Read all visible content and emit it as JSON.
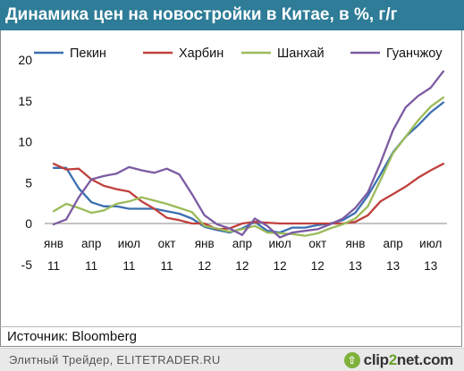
{
  "header": {
    "title": "Динамика цен на новостройки в Китае, в %, г/г"
  },
  "source": {
    "text": "Источник: Bloomberg"
  },
  "footer": {
    "text": "Элитный Трейдер, ELITETRADER.RU",
    "logo_part1": "clip",
    "logo_part2": "2",
    "logo_part3": "net.com",
    "logo_icon": "arrow-up-icon"
  },
  "chart_data": {
    "type": "line",
    "title": "Динамика цен на новостройки в Китае, в %, г/г",
    "xlabel": "",
    "ylabel": "",
    "ylim": [
      -5,
      20
    ],
    "yticks": [
      "20",
      "15",
      "10",
      "5",
      "0",
      "-5"
    ],
    "ytick_values": [
      20,
      15,
      10,
      5,
      0,
      -5
    ],
    "xticks": [
      {
        "month": "янв",
        "year": "11",
        "index": 0
      },
      {
        "month": "апр",
        "year": "11",
        "index": 3
      },
      {
        "month": "июл",
        "year": "11",
        "index": 6
      },
      {
        "month": "окт",
        "year": "11",
        "index": 9
      },
      {
        "month": "янв",
        "year": "12",
        "index": 12
      },
      {
        "month": "апр",
        "year": "12",
        "index": 15
      },
      {
        "month": "июл",
        "year": "12",
        "index": 18
      },
      {
        "month": "окт",
        "year": "12",
        "index": 21
      },
      {
        "month": "янв",
        "year": "13",
        "index": 24
      },
      {
        "month": "апр",
        "year": "13",
        "index": 27
      },
      {
        "month": "июл",
        "year": "13",
        "index": 30
      }
    ],
    "months": [
      "янв 11",
      "фев 11",
      "мар 11",
      "апр 11",
      "май 11",
      "июн 11",
      "июл 11",
      "авг 11",
      "сен 11",
      "окт 11",
      "ноя 11",
      "дек 11",
      "янв 12",
      "фев 12",
      "мар 12",
      "апр 12",
      "май 12",
      "июн 12",
      "июл 12",
      "авг 12",
      "сен 12",
      "окт 12",
      "ноя 12",
      "дек 12",
      "янв 13",
      "фев 13",
      "мар 13",
      "апр 13",
      "май 13",
      "июн 13",
      "июл 13",
      "авг 13"
    ],
    "legend_position": "top",
    "grid": false,
    "series": [
      {
        "name": "Пекин",
        "color": "#3a6fb0",
        "values": [
          6.8,
          6.8,
          4.3,
          2.6,
          2.1,
          2.1,
          1.8,
          1.8,
          1.8,
          1.5,
          1.2,
          0.6,
          -0.4,
          -0.8,
          -1.1,
          -0.6,
          0.2,
          -0.9,
          -1.1,
          -0.5,
          -0.5,
          -0.2,
          0.0,
          0.4,
          1.3,
          3.4,
          6.0,
          8.7,
          10.6,
          12.0,
          13.6,
          14.8
        ]
      },
      {
        "name": "Харбин",
        "color": "#c0403c",
        "values": [
          7.3,
          6.6,
          6.7,
          5.4,
          4.6,
          4.2,
          3.9,
          2.7,
          1.8,
          0.7,
          0.4,
          0.0,
          0.0,
          -0.7,
          -0.6,
          0.0,
          0.2,
          0.1,
          0.0,
          0.0,
          0.0,
          0.0,
          0.0,
          0.0,
          0.2,
          1.0,
          2.7,
          3.6,
          4.5,
          5.6,
          6.5,
          7.3
        ]
      },
      {
        "name": "Шанхай",
        "color": "#9bbb59",
        "values": [
          1.5,
          2.4,
          1.9,
          1.3,
          1.6,
          2.4,
          2.7,
          3.2,
          2.8,
          2.4,
          1.9,
          1.4,
          -0.3,
          -0.6,
          -1.0,
          -0.7,
          -0.3,
          -1.1,
          -1.2,
          -1.3,
          -1.5,
          -1.2,
          -0.6,
          -0.1,
          0.6,
          2.1,
          5.3,
          8.6,
          10.6,
          12.6,
          14.3,
          15.4
        ]
      },
      {
        "name": "Гуанчжоу",
        "color": "#7c5ba2",
        "values": [
          -0.1,
          0.5,
          3.2,
          5.4,
          5.8,
          6.1,
          6.9,
          6.5,
          6.2,
          6.7,
          6.0,
          3.6,
          1.0,
          -0.1,
          -0.6,
          -1.4,
          0.6,
          -0.3,
          -1.7,
          -1.1,
          -0.9,
          -0.7,
          -0.1,
          0.6,
          1.9,
          3.8,
          7.4,
          11.4,
          14.2,
          15.6,
          16.6,
          18.6
        ]
      }
    ]
  }
}
